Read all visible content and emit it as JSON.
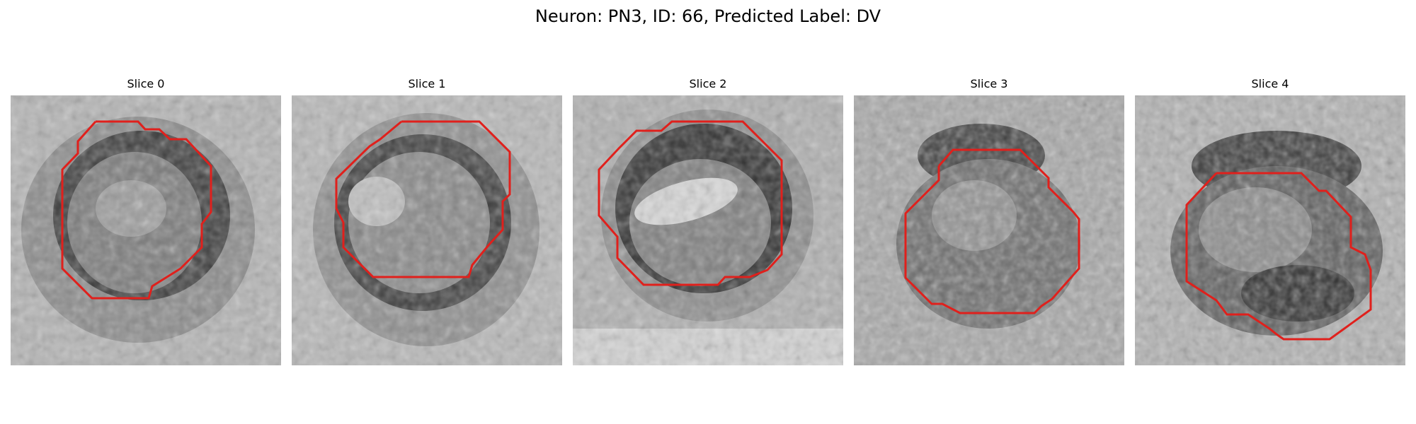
{
  "figure": {
    "title": "Neuron: PN3, ID: 66, Predicted Label: DV"
  },
  "panels": [
    {
      "title": "Slice 0"
    },
    {
      "title": "Slice 1"
    },
    {
      "title": "Slice 2"
    },
    {
      "title": "Slice 3"
    },
    {
      "title": "Slice 4"
    }
  ],
  "colors": {
    "contour": "#e0201c",
    "image_dark": "#202020",
    "image_light": "#e8e8e8"
  }
}
